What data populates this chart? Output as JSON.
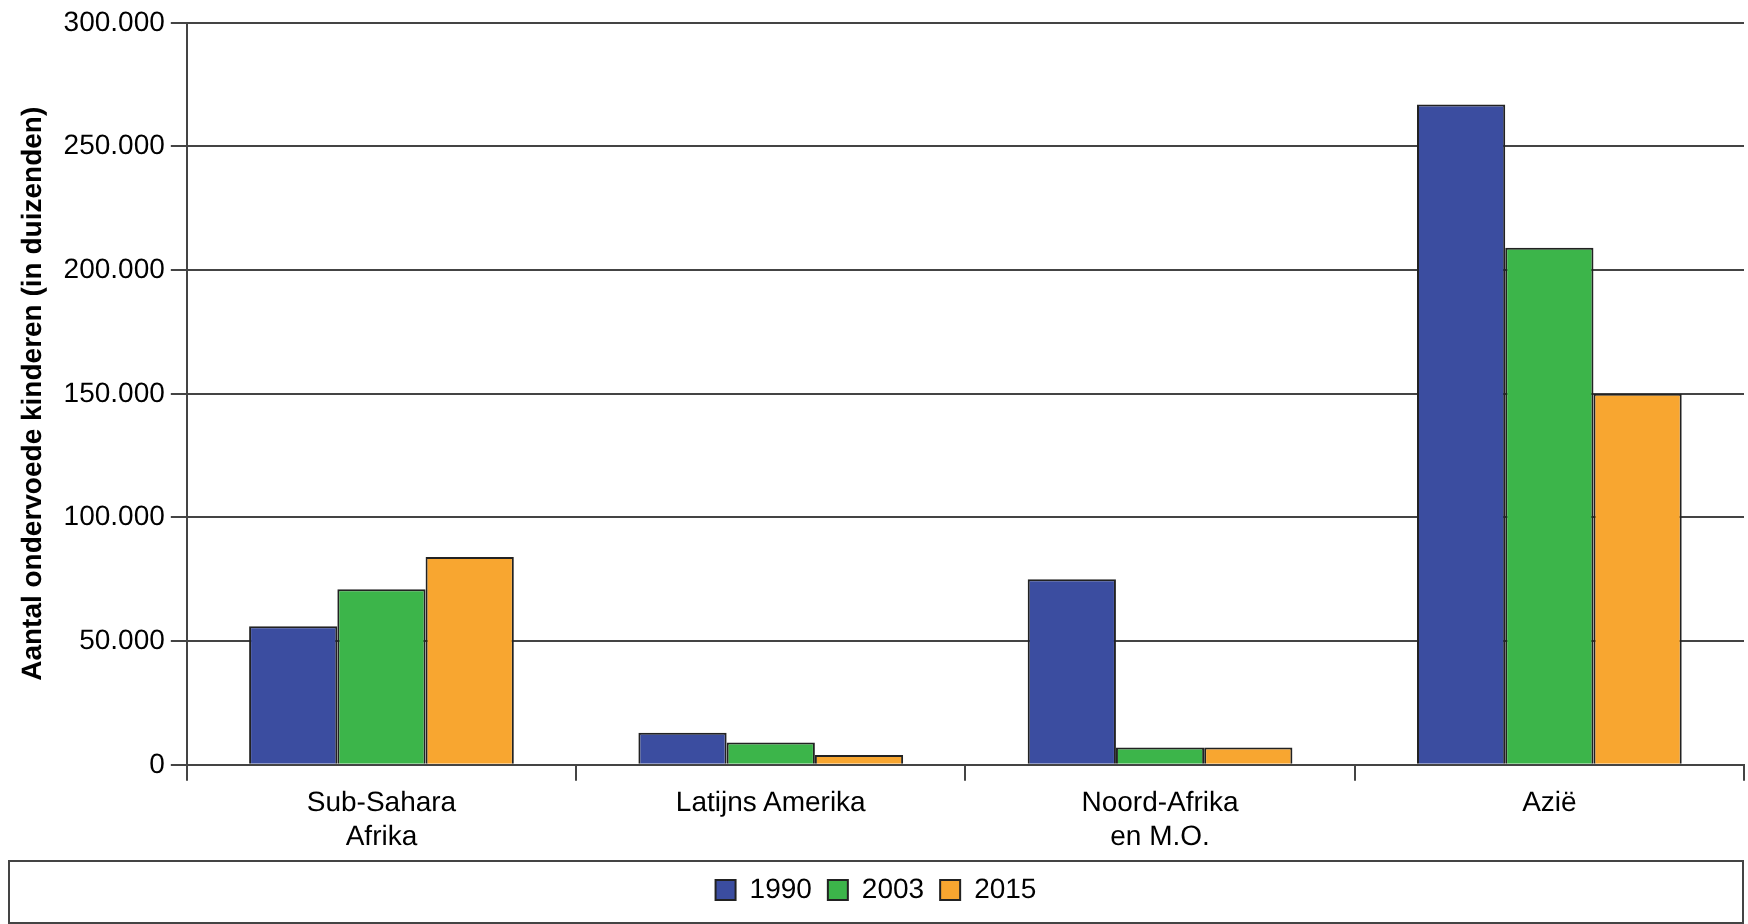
{
  "chart_data": {
    "type": "bar",
    "ylabel": "Aantal ondervoede kinderen (in duizenden)",
    "categories": [
      "Sub-Sahara\nAfrika",
      "Latijns Amerika",
      "Noord-Afrika\nen M.O.",
      "Azië"
    ],
    "series": [
      {
        "name": "1990",
        "color": "#3b4da0",
        "values": [
          56000,
          13000,
          75000,
          267000
        ]
      },
      {
        "name": "2003",
        "color": "#3cb54a",
        "values": [
          71000,
          9000,
          7000,
          209000
        ]
      },
      {
        "name": "2015",
        "color": "#f8a630",
        "values": [
          84000,
          4000,
          7000,
          150000
        ]
      }
    ],
    "ylim": [
      0,
      300000
    ],
    "yticks": [
      {
        "value": 0,
        "label": "0"
      },
      {
        "value": 50000,
        "label": "50.000"
      },
      {
        "value": 100000,
        "label": "100.000"
      },
      {
        "value": 150000,
        "label": "150.000"
      },
      {
        "value": 200000,
        "label": "200.000"
      },
      {
        "value": 250000,
        "label": "250.000"
      },
      {
        "value": 300000,
        "label": "300.000"
      }
    ],
    "grid": "y",
    "legend": "bottom"
  }
}
